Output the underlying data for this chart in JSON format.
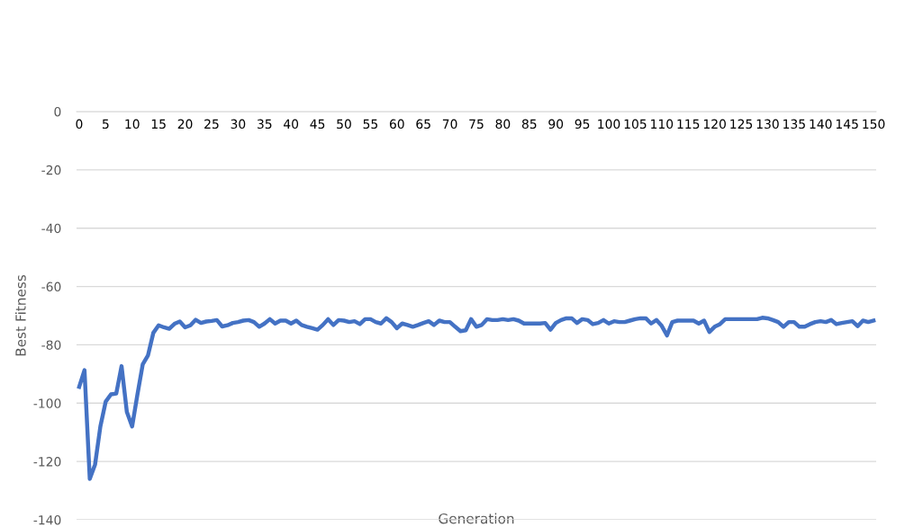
{
  "chart_data": {
    "type": "line",
    "xlabel": "Generation",
    "ylabel": "Best Fitness",
    "x": [
      0,
      1,
      2,
      3,
      4,
      5,
      6,
      7,
      8,
      9,
      10,
      11,
      12,
      13,
      14,
      15,
      16,
      17,
      18,
      19,
      20,
      21,
      22,
      23,
      24,
      25,
      26,
      27,
      28,
      29,
      30,
      31,
      32,
      33,
      34,
      35,
      36,
      37,
      38,
      39,
      40,
      41,
      42,
      43,
      44,
      45,
      46,
      47,
      48,
      49,
      50,
      51,
      52,
      53,
      54,
      55,
      56,
      57,
      58,
      59,
      60,
      61,
      62,
      63,
      64,
      65,
      66,
      67,
      68,
      69,
      70,
      71,
      72,
      73,
      74,
      75,
      76,
      77,
      78,
      79,
      80,
      81,
      82,
      83,
      84,
      85,
      86,
      87,
      88,
      89,
      90,
      91,
      92,
      93,
      94,
      95,
      96,
      97,
      98,
      99,
      100,
      101,
      102,
      103,
      104,
      105,
      106,
      107,
      108,
      109,
      110,
      111,
      112,
      113,
      114,
      115,
      116,
      117,
      118,
      119,
      120,
      121,
      122,
      123,
      124,
      125,
      126,
      127,
      128,
      129,
      130,
      131,
      132,
      133,
      134,
      135,
      136,
      137,
      138,
      139,
      140,
      141,
      142,
      143,
      144,
      145,
      146,
      147,
      148,
      149,
      150
    ],
    "series": [
      {
        "color": "#4472c4",
        "values": [
          -94.4,
          -88.7,
          -126,
          -121,
          -108,
          -99.5,
          -97,
          -96.7,
          -87.3,
          -103,
          -108,
          -97,
          -86.7,
          -83.6,
          -75.9,
          -73.3,
          -74,
          -74.5,
          -72.8,
          -72,
          -74,
          -73.3,
          -71.4,
          -72.5,
          -72,
          -71.8,
          -71.5,
          -73.7,
          -73.3,
          -72.5,
          -72.2,
          -71.7,
          -71.5,
          -72.2,
          -73.8,
          -72.7,
          -71.2,
          -72.7,
          -71.7,
          -71.7,
          -72.7,
          -71.7,
          -73.2,
          -73.8,
          -74.3,
          -74.8,
          -73.2,
          -71.2,
          -73.2,
          -71.5,
          -71.7,
          -72.2,
          -71.9,
          -72.9,
          -71.2,
          -71.2,
          -72.2,
          -72.7,
          -70.9,
          -72.2,
          -74.3,
          -72.7,
          -73.2,
          -73.8,
          -73.2,
          -72.5,
          -71.9,
          -73.2,
          -71.7,
          -72.2,
          -72.2,
          -73.8,
          -75.3,
          -75,
          -71.2,
          -73.8,
          -73.2,
          -71.2,
          -71.5,
          -71.5,
          -71.2,
          -71.5,
          -71.2,
          -71.7,
          -72.7,
          -72.7,
          -72.7,
          -72.7,
          -72.5,
          -74.8,
          -72.5,
          -71.5,
          -70.9,
          -70.9,
          -72.5,
          -71.2,
          -71.5,
          -72.9,
          -72.5,
          -71.5,
          -72.7,
          -71.9,
          -72.2,
          -72.2,
          -71.7,
          -71.2,
          -70.9,
          -70.9,
          -72.7,
          -71.5,
          -73.5,
          -76.8,
          -72.2,
          -71.7,
          -71.7,
          -71.7,
          -71.7,
          -72.7,
          -71.7,
          -75.6,
          -73.8,
          -72.9,
          -71.2,
          -71.2,
          -71.2,
          -71.2,
          -71.2,
          -71.2,
          -71.2,
          -70.7,
          -70.9,
          -71.5,
          -72.2,
          -73.8,
          -72.2,
          -72.2,
          -73.8,
          -73.8,
          -72.9,
          -72.2,
          -71.9,
          -72.2,
          -71.5,
          -72.9,
          -72.5,
          -72.2,
          -71.9,
          -73.6,
          -71.7,
          -72.2,
          -71.7
        ]
      }
    ],
    "xlim": [
      -0.5,
      150.5
    ],
    "xticks": [
      0,
      5,
      10,
      15,
      20,
      25,
      30,
      35,
      40,
      45,
      50,
      55,
      60,
      65,
      70,
      75,
      80,
      85,
      90,
      95,
      100,
      105,
      110,
      115,
      120,
      125,
      130,
      135,
      140,
      145,
      150
    ],
    "ylim": [
      -140,
      0
    ],
    "yticks": [
      -140,
      -120,
      -100,
      -80,
      -60,
      -40,
      -20,
      0
    ],
    "grid": "y",
    "marker": "none",
    "line_style": "solid"
  }
}
